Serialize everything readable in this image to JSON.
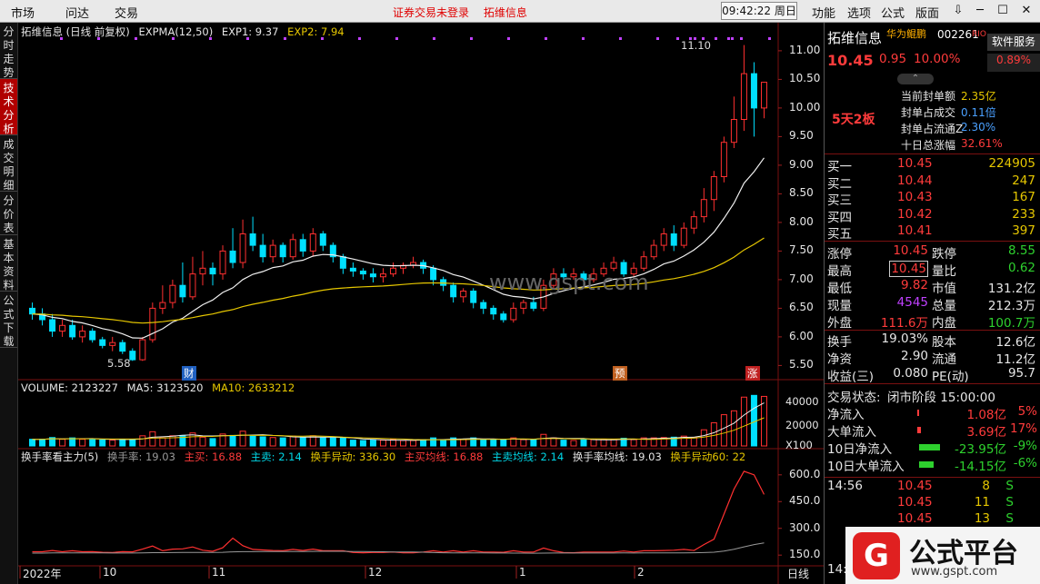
{
  "menubar": {
    "left_items": [
      "市场",
      "问达",
      "交易"
    ],
    "center_notices": [
      "证券交易未登录",
      "拓维信息"
    ],
    "clock": "09:42:22 周日",
    "right_items": [
      "功能",
      "选项",
      "公式",
      "版面"
    ],
    "window_buttons": [
      "⇩",
      "─",
      "☐",
      "✕"
    ]
  },
  "vtabs": [
    "分时走势",
    "技术分析",
    "成交明细",
    "分价表",
    "基本资料",
    "公式下载"
  ],
  "vtabs_active": 1,
  "main_legend": {
    "title": "拓维信息 (日线 前复权)",
    "ind": "EXPMA(12,50)",
    "exp1": "EXP1: 9.37",
    "exp2": "EXP2: 7.94"
  },
  "vol_legend": {
    "title": "VOLUME: 2123227",
    "ma5": "MA5: 3123520",
    "ma10": "MA10: 2633212"
  },
  "turn_legend": {
    "title": "换手率看主力(5)",
    "t1": "换手率: 19.03",
    "t2": "主买: 16.88",
    "t3": "主卖: 2.14",
    "t4": "换手异动: 336.30",
    "t5": "主买均线: 16.88",
    "t6": "主卖均线: 2.14",
    "t7": "换手率均线: 19.03",
    "t8": "换手异动60: 22"
  },
  "price_axis": [
    "11.00",
    "10.50",
    "10.00",
    "9.50",
    "9.00",
    "8.50",
    "8.00",
    "7.50",
    "7.00",
    "6.50",
    "6.00",
    "5.50"
  ],
  "vol_axis": [
    "40000",
    "20000",
    "X100"
  ],
  "turn_axis": [
    "600.0",
    "450.0",
    "300.0",
    "150.0"
  ],
  "x_axis": [
    "2022年",
    "10",
    "11",
    "12",
    "1",
    "2"
  ],
  "x_axis_end": "日线",
  "annotations": {
    "high": "11.10",
    "low": "5.58",
    "marker1": "财",
    "marker2": "预",
    "marker3": "涨",
    "watermark": "www.gspt.com"
  },
  "panel": {
    "name": "拓维信息",
    "tag": "华为鲲鹏",
    "code": "002261",
    "rio": "RIO",
    "soft": "软件服务",
    "soft_pct": "0.89%",
    "price": "10.45",
    "change": "0.95",
    "change_pct": "10.00%",
    "streak": "5天2板",
    "seal": [
      {
        "label": "当前封单额",
        "value": "2.35亿"
      },
      {
        "label": "封单占成交",
        "value": "0.11倍"
      },
      {
        "label": "封单占流通Z",
        "value": "2.30%"
      },
      {
        "label": "十日总涨幅",
        "value": "32.61%"
      }
    ],
    "bids": [
      {
        "label": "买一",
        "price": "10.45",
        "vol": "224905"
      },
      {
        "label": "买二",
        "price": "10.44",
        "vol": "247"
      },
      {
        "label": "买三",
        "price": "10.43",
        "vol": "167"
      },
      {
        "label": "买四",
        "price": "10.42",
        "vol": "233"
      },
      {
        "label": "买五",
        "price": "10.41",
        "vol": "397"
      }
    ],
    "quote": [
      {
        "l1": "涨停",
        "v1": "10.45",
        "l2": "跌停",
        "v2": "8.55"
      },
      {
        "l1": "最高",
        "v1": "10.45",
        "l2": "量比",
        "v2": "0.62"
      },
      {
        "l1": "最低",
        "v1": "9.82",
        "l2": "市值",
        "v2": "131.2亿"
      },
      {
        "l1": "现量",
        "v1": "4545",
        "l2": "总量",
        "v2": "212.3万"
      },
      {
        "l1": "外盘",
        "v1": "111.6万",
        "l2": "内盘",
        "v2": "100.7万"
      }
    ],
    "fund": [
      {
        "l1": "换手",
        "v1": "19.03%",
        "l2": "股本",
        "v2": "12.6亿"
      },
      {
        "l1": "净资",
        "v1": "2.90",
        "l2": "流通",
        "v2": "11.2亿"
      },
      {
        "l1": "收益(三)",
        "v1": "0.080",
        "l2": "PE(动)",
        "v2": "95.7"
      }
    ],
    "trade_state_label": "交易状态:",
    "trade_state": "闭市阶段 15:00:00",
    "flows": [
      {
        "label": "净流入",
        "value": "1.08亿",
        "pct": "5%",
        "bar": 0.05,
        "color": "#ff3b3b"
      },
      {
        "label": "大单流入",
        "value": "3.69亿",
        "pct": "17%",
        "bar": 0.17,
        "color": "#ff3b3b"
      },
      {
        "label": "10日净流入",
        "value": "-23.95亿",
        "pct": "-9%",
        "bar": 0.9,
        "color": "#2ed12e"
      },
      {
        "label": "10日大单流入",
        "value": "-14.15亿",
        "pct": "-6%",
        "bar": 0.6,
        "color": "#2ed12e"
      }
    ],
    "ticks": [
      {
        "time": "14:56",
        "price": "10.45",
        "vol": "8",
        "side": "S"
      },
      {
        "time": "",
        "price": "10.45",
        "vol": "11",
        "side": "S"
      },
      {
        "time": "",
        "price": "10.45",
        "vol": "13",
        "side": "S"
      }
    ],
    "tick_more": "14:5"
  },
  "watermark": {
    "logo": "G",
    "title": "公式平台",
    "url": "www.gspt.com"
  },
  "chart_data": {
    "type": "candlestick",
    "price_range": [
      5.3,
      11.3
    ],
    "candles": [
      [
        6.5,
        6.4,
        6.6,
        6.3
      ],
      [
        6.4,
        6.3,
        6.5,
        6.2
      ],
      [
        6.3,
        6.1,
        6.4,
        6.0
      ],
      [
        6.1,
        6.2,
        6.3,
        6.0
      ],
      [
        6.2,
        6.0,
        6.3,
        5.95
      ],
      [
        6.0,
        6.1,
        6.2,
        5.9
      ],
      [
        6.1,
        5.95,
        6.15,
        5.9
      ],
      [
        5.95,
        5.85,
        6.0,
        5.8
      ],
      [
        5.85,
        5.9,
        6.0,
        5.75
      ],
      [
        5.9,
        5.75,
        5.95,
        5.7
      ],
      [
        5.75,
        5.6,
        5.8,
        5.58
      ],
      [
        5.6,
        5.95,
        6.0,
        5.58
      ],
      [
        5.95,
        6.5,
        6.6,
        5.9
      ],
      [
        6.5,
        6.6,
        6.9,
        6.4
      ],
      [
        6.6,
        6.9,
        7.0,
        6.5
      ],
      [
        6.9,
        6.7,
        7.3,
        6.6
      ],
      [
        6.7,
        7.1,
        7.4,
        6.65
      ],
      [
        7.1,
        7.2,
        7.5,
        6.9
      ],
      [
        7.2,
        7.1,
        7.3,
        6.9
      ],
      [
        7.1,
        7.5,
        7.6,
        7.0
      ],
      [
        7.5,
        7.3,
        7.9,
        7.2
      ],
      [
        7.3,
        7.8,
        8.05,
        7.2
      ],
      [
        7.8,
        7.6,
        8.1,
        7.5
      ],
      [
        7.6,
        7.4,
        7.8,
        7.3
      ],
      [
        7.4,
        7.6,
        7.7,
        7.3
      ],
      [
        7.6,
        7.4,
        7.65,
        7.3
      ],
      [
        7.4,
        7.7,
        7.8,
        7.35
      ],
      [
        7.7,
        7.5,
        7.8,
        7.4
      ],
      [
        7.5,
        7.8,
        7.9,
        7.4
      ],
      [
        7.8,
        7.6,
        7.85,
        7.5
      ],
      [
        7.6,
        7.4,
        7.65,
        7.3
      ],
      [
        7.4,
        7.2,
        7.45,
        7.1
      ],
      [
        7.2,
        7.15,
        7.3,
        7.05
      ],
      [
        7.15,
        7.1,
        7.2,
        7.0
      ],
      [
        7.1,
        7.05,
        7.2,
        6.95
      ],
      [
        7.05,
        7.1,
        7.2,
        6.95
      ],
      [
        7.1,
        7.2,
        7.3,
        7.05
      ],
      [
        7.2,
        7.25,
        7.3,
        7.1
      ],
      [
        7.25,
        7.3,
        7.4,
        7.2
      ],
      [
        7.3,
        7.2,
        7.35,
        7.1
      ],
      [
        7.2,
        7.0,
        7.25,
        6.9
      ],
      [
        7.0,
        6.9,
        7.05,
        6.8
      ],
      [
        6.9,
        6.7,
        6.95,
        6.6
      ],
      [
        6.7,
        6.8,
        6.85,
        6.6
      ],
      [
        6.8,
        6.6,
        6.85,
        6.5
      ],
      [
        6.6,
        6.5,
        6.65,
        6.4
      ],
      [
        6.5,
        6.4,
        6.55,
        6.3
      ],
      [
        6.4,
        6.3,
        6.45,
        6.25
      ],
      [
        6.3,
        6.5,
        6.6,
        6.25
      ],
      [
        6.5,
        6.6,
        6.65,
        6.4
      ],
      [
        6.6,
        6.5,
        6.7,
        6.45
      ],
      [
        6.5,
        6.9,
        7.0,
        6.45
      ],
      [
        6.9,
        7.1,
        7.2,
        6.85
      ],
      [
        7.1,
        7.05,
        7.2,
        6.95
      ],
      [
        7.05,
        7.1,
        7.2,
        7.0
      ],
      [
        7.1,
        7.0,
        7.15,
        6.9
      ],
      [
        7.0,
        7.1,
        7.2,
        6.95
      ],
      [
        7.1,
        7.2,
        7.3,
        7.05
      ],
      [
        7.2,
        7.3,
        7.4,
        7.15
      ],
      [
        7.3,
        7.1,
        7.35,
        7.05
      ],
      [
        7.1,
        7.2,
        7.3,
        7.05
      ],
      [
        7.2,
        7.4,
        7.5,
        7.15
      ],
      [
        7.4,
        7.6,
        7.7,
        7.35
      ],
      [
        7.6,
        7.8,
        7.9,
        7.5
      ],
      [
        7.8,
        7.6,
        7.95,
        7.5
      ],
      [
        7.6,
        7.9,
        8.0,
        7.55
      ],
      [
        7.9,
        8.1,
        8.2,
        7.8
      ],
      [
        8.1,
        8.4,
        8.6,
        8.0
      ],
      [
        8.4,
        8.8,
        8.9,
        8.2
      ],
      [
        8.8,
        9.4,
        9.5,
        8.7
      ],
      [
        9.4,
        9.8,
        10.2,
        9.3
      ],
      [
        9.8,
        10.6,
        11.1,
        9.6
      ],
      [
        10.6,
        10.0,
        10.8,
        9.5
      ],
      [
        10.0,
        10.45,
        10.45,
        9.82
      ]
    ],
    "volume_range": [
      0,
      45000
    ],
    "turn_range": [
      100,
      650
    ]
  }
}
